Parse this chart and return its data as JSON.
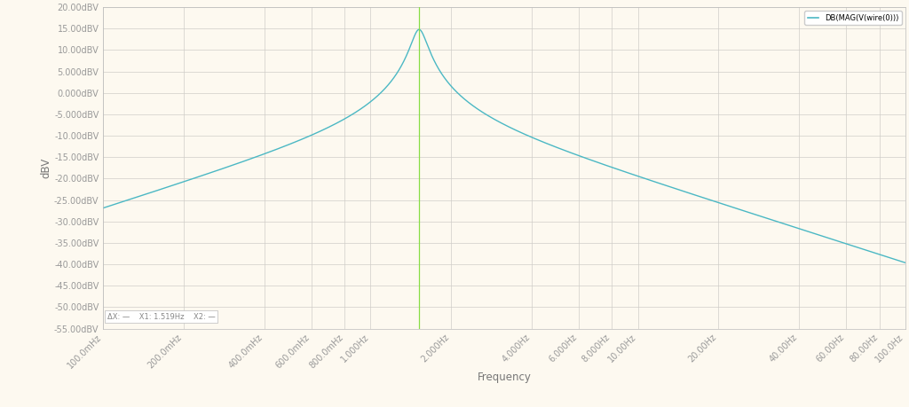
{
  "title": "",
  "xlabel": "Frequency",
  "ylabel": "dBV",
  "background_color": "#fdf9f0",
  "grid_color": "#d0cdc8",
  "line_color": "#4bb8c4",
  "vline_color": "#88dd44",
  "vline_freq": 1.519,
  "legend_label": "DB(MAG(V(wire(0)))",
  "legend_color": "#4bb8c4",
  "ylim": [
    -55,
    20
  ],
  "yticks": [
    20,
    15,
    10,
    5,
    0,
    -5,
    -10,
    -15,
    -20,
    -25,
    -30,
    -35,
    -40,
    -45,
    -50,
    -55
  ],
  "ytick_labels": [
    "20.00dBV",
    "15.00dBV",
    "10.00dBV",
    "5.000dBV",
    "0.000dBV",
    "-5.000dBV",
    "-10.00dBV",
    "-15.00dBV",
    "-20.00dBV",
    "-25.00dBV",
    "-30.00dBV",
    "-35.00dBV",
    "-40.00dBV",
    "-45.00dBV",
    "-50.00dBV",
    "-55.00dBV"
  ],
  "xlog_min": 0.1,
  "xlog_max": 100,
  "xtick_freqs": [
    0.1,
    0.2,
    0.4,
    0.6,
    0.8,
    1.0,
    2.0,
    4.0,
    6.0,
    8.0,
    10.0,
    20.0,
    40.0,
    60.0,
    80.0,
    100.0
  ],
  "xtick_labels": [
    "100.0mHz",
    "200.0mHz",
    "400.0mHz",
    "600.0mHz",
    "800.0mHz",
    "1.000Hz",
    "2.000Hz",
    "4.000Hz",
    "6.000Hz",
    "8.000Hz",
    "10.00Hz",
    "20.00Hz",
    "40.00Hz",
    "60.00Hz",
    "80.00Hz",
    "100.0Hz"
  ],
  "cursor_label": "ΔX: —    X1: 1.519Hz    X2: —",
  "peak_db": 14.8,
  "peak_freq": 1.519,
  "Q": 8.0,
  "font_size_ticks": 7.0,
  "font_size_labels": 8.5,
  "figwidth": 10.24,
  "figheight": 4.59,
  "dpi": 100
}
